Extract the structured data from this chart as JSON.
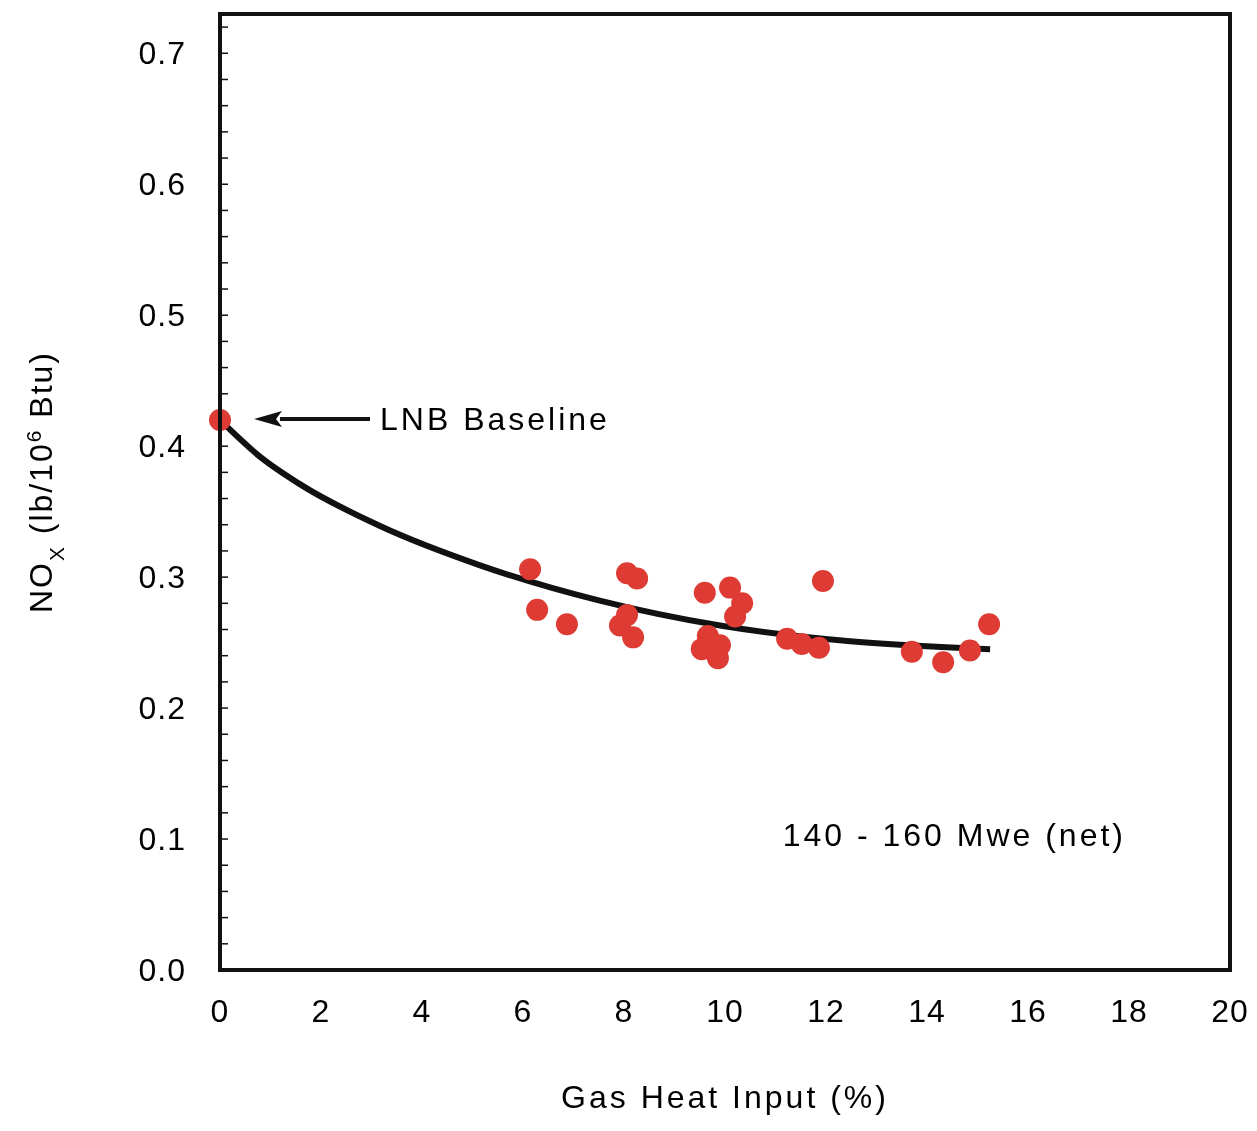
{
  "chart_data": {
    "type": "scatter",
    "xlabel": "Gas Heat Input (%)",
    "ylabel": "NO$_{X}$ (lb/10$^{6}$ Btu)",
    "xlim": [
      0,
      20
    ],
    "xticks": [
      0,
      2,
      4,
      6,
      8,
      10,
      12,
      14,
      16,
      18,
      20
    ],
    "ylim": [
      0,
      0.73
    ],
    "yticks": [
      {
        "value": 0,
        "label": "0.0"
      },
      {
        "value": 0.02,
        "label": null
      },
      {
        "value": 0.04,
        "label": null
      },
      {
        "value": 0.06,
        "label": null
      },
      {
        "value": 0.08,
        "label": null
      },
      0.1,
      {
        "value": 0.12,
        "label": null
      },
      {
        "value": 0.14,
        "label": null
      },
      {
        "value": 0.16,
        "label": null
      },
      {
        "value": 0.18,
        "label": null
      },
      0.2,
      {
        "value": 0.22,
        "label": null
      },
      {
        "value": 0.24,
        "label": null
      },
      {
        "value": 0.26,
        "label": null
      },
      {
        "value": 0.28,
        "label": null
      },
      0.3,
      {
        "value": 0.32,
        "label": null
      },
      {
        "value": 0.34,
        "label": null
      },
      {
        "value": 0.36,
        "label": null
      },
      {
        "value": 0.38,
        "label": null
      },
      0.4,
      {
        "value": 0.42,
        "label": null
      },
      {
        "value": 0.44,
        "label": null
      },
      {
        "value": 0.46,
        "label": null
      },
      {
        "value": 0.48,
        "label": null
      },
      0.5,
      {
        "value": 0.52,
        "label": null
      },
      {
        "value": 0.54,
        "label": null
      },
      {
        "value": 0.56,
        "label": null
      },
      {
        "value": 0.58,
        "label": null
      },
      0.6,
      {
        "value": 0.62,
        "label": null
      },
      {
        "value": 0.64,
        "label": null
      },
      {
        "value": 0.66,
        "label": null
      },
      {
        "value": 0.68,
        "label": null
      },
      0.7,
      {
        "value": 0.72,
        "label": null
      }
    ],
    "grid": false,
    "series": [
      {
        "type": "line",
        "color": "#111111",
        "line_style": "solid",
        "x": [
          0,
          0.79,
          1.58,
          3.17,
          5.15,
          7.52,
          9.9,
          12.48,
          15.25
        ],
        "values": [
          0.42,
          0.392,
          0.371,
          0.339,
          0.309,
          0.282,
          0.263,
          0.251,
          0.245
        ]
      },
      {
        "color": "#dd3b33",
        "marker": "circle",
        "x": [
          0,
          6.14,
          6.28,
          6.87,
          8.06,
          8.26,
          8.06,
          7.92,
          8.18,
          9.6,
          10.1,
          10.34,
          10.2,
          9.66,
          9.54,
          9.9,
          9.86,
          11.94,
          11.23,
          11.52,
          11.86,
          13.7,
          14.32,
          14.85,
          15.23
        ],
        "values": [
          0.42,
          0.306,
          0.275,
          0.264,
          0.303,
          0.299,
          0.271,
          0.263,
          0.254,
          0.288,
          0.292,
          0.28,
          0.27,
          0.255,
          0.245,
          0.248,
          0.238,
          0.297,
          0.253,
          0.249,
          0.246,
          0.243,
          0.235,
          0.244,
          0.264
        ]
      }
    ],
    "annotations": [
      "LNB Baseline",
      "140 - 160 Mwe (net)"
    ]
  }
}
